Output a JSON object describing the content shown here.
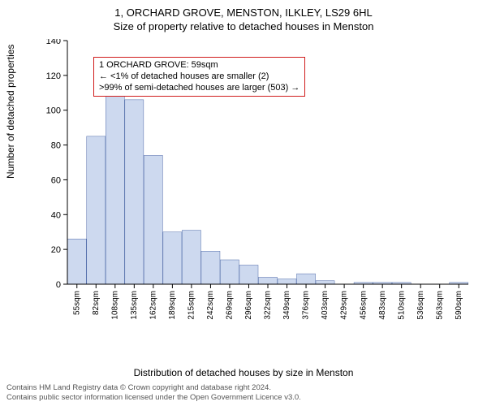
{
  "header": {
    "title_main": "1, ORCHARD GROVE, MENSTON, ILKLEY, LS29 6HL",
    "title_sub": "Size of property relative to detached houses in Menston"
  },
  "chart": {
    "type": "histogram",
    "bar_fill": "#cdd9ef",
    "bar_stroke": "#4f6aa8",
    "background_color": "#ffffff",
    "axis_color": "#000000",
    "ylim": [
      0,
      140
    ],
    "ytick_step": 20,
    "yticks": [
      0,
      20,
      40,
      60,
      80,
      100,
      120,
      140
    ],
    "ylabel": "Number of detached properties",
    "xlabel": "Distribution of detached houses by size in Menston",
    "bar_width": 0.98,
    "label_fontsize": 12,
    "tick_fontsize": 11,
    "xticks": [
      "55sqm",
      "82sqm",
      "108sqm",
      "135sqm",
      "162sqm",
      "189sqm",
      "215sqm",
      "242sqm",
      "269sqm",
      "296sqm",
      "322sqm",
      "349sqm",
      "376sqm",
      "403sqm",
      "429sqm",
      "456sqm",
      "483sqm",
      "510sqm",
      "536sqm",
      "563sqm",
      "590sqm"
    ],
    "values": [
      26,
      85,
      108,
      106,
      74,
      30,
      31,
      19,
      14,
      11,
      4,
      3,
      6,
      2,
      0,
      1,
      1,
      1,
      0,
      0,
      1
    ]
  },
  "annotation": {
    "border_color": "#d01c1c",
    "line1": "1 ORCHARD GROVE: 59sqm",
    "line2": "← <1% of detached houses are smaller (2)",
    "line3": ">99% of semi-detached houses are larger (503) →"
  },
  "footer": {
    "line1": "Contains HM Land Registry data © Crown copyright and database right 2024.",
    "line2": "Contains public sector information licensed under the Open Government Licence v3.0."
  }
}
